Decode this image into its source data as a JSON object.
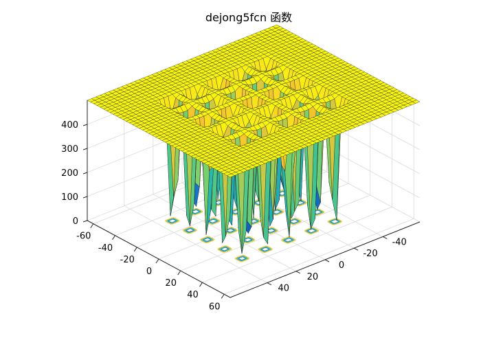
{
  "chart_data": {
    "type": "surface3d",
    "function": "dejong5fcn",
    "title": "dejong5fcn 函数",
    "xlabel": "",
    "ylabel": "",
    "zlabel": "",
    "x_range": [
      -65.536,
      65.536
    ],
    "y_range": [
      -65.536,
      65.536
    ],
    "z_range": [
      0,
      500
    ],
    "x_ticks": [
      "-60",
      "-40",
      "-20",
      "0",
      "20",
      "40",
      "60"
    ],
    "y_ticks": [
      "-40",
      "-20",
      "0",
      "20",
      "40"
    ],
    "z_ticks": [
      "0",
      "100",
      "200",
      "300",
      "400"
    ],
    "well_centers": [
      -32,
      -16,
      0,
      16,
      32
    ],
    "plateau_value": 500,
    "colormap": [
      "#0b2a9b",
      "#1a8ad6",
      "#2bbfa2",
      "#7cd06b",
      "#f5c430",
      "#f9f70e"
    ],
    "grid": true,
    "contour_projection": true
  }
}
